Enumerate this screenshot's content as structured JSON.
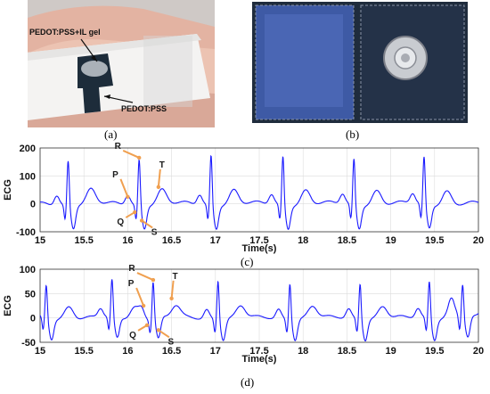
{
  "panel_a": {
    "caption": "(a)",
    "label_gel": "PEDOT:PSS+IL gel",
    "label_pss": "PEDOT:PSS"
  },
  "panel_b": {
    "caption": "(b)"
  },
  "colors": {
    "trace": "#1a1aff",
    "arrow": "#f0a050",
    "annot": "#1a1a1a"
  },
  "chart_data": [
    {
      "type": "line",
      "caption": "(c)",
      "xlabel": "Time(s)",
      "ylabel": "ECG",
      "xlim": [
        15,
        20
      ],
      "ylim": [
        -100,
        200
      ],
      "xticks": [
        15,
        15.5,
        16,
        16.5,
        17,
        17.5,
        18,
        18.5,
        19,
        19.5,
        20
      ],
      "yticks": [
        -100,
        0,
        100,
        200
      ],
      "grid": true,
      "r_peaks": [
        15.32,
        16.13,
        16.95,
        17.77,
        18.58,
        19.38
      ],
      "r_peak_values": [
        160,
        165,
        180,
        175,
        165,
        170
      ],
      "annotations": [
        {
          "text": "R",
          "x": 16.13,
          "y": 165
        },
        {
          "text": "P",
          "x": 16.0,
          "y": 25
        },
        {
          "text": "T",
          "x": 16.35,
          "y": 60
        },
        {
          "text": "Q",
          "x": 16.08,
          "y": -30
        },
        {
          "text": "S",
          "x": 16.16,
          "y": -60
        }
      ]
    },
    {
      "type": "line",
      "caption": "(d)",
      "xlabel": "Time(s)",
      "ylabel": "ECG",
      "xlim": [
        15,
        20
      ],
      "ylim": [
        -50,
        100
      ],
      "xticks": [
        15,
        15.5,
        16,
        16.5,
        17,
        17.5,
        18,
        18.5,
        19,
        19.5,
        20
      ],
      "yticks": [
        -50,
        0,
        50,
        100
      ],
      "grid": true,
      "r_peaks": [
        15.07,
        15.82,
        16.29,
        17.03,
        17.85,
        18.65,
        19.44,
        19.82
      ],
      "r_peak_values": [
        68,
        78,
        78,
        82,
        76,
        75,
        78,
        70
      ],
      "annotations": [
        {
          "text": "R",
          "x": 16.29,
          "y": 78
        },
        {
          "text": "P",
          "x": 16.18,
          "y": 25
        },
        {
          "text": "T",
          "x": 16.5,
          "y": 40
        },
        {
          "text": "Q",
          "x": 16.22,
          "y": -15
        },
        {
          "text": "S",
          "x": 16.35,
          "y": -25
        }
      ]
    }
  ]
}
